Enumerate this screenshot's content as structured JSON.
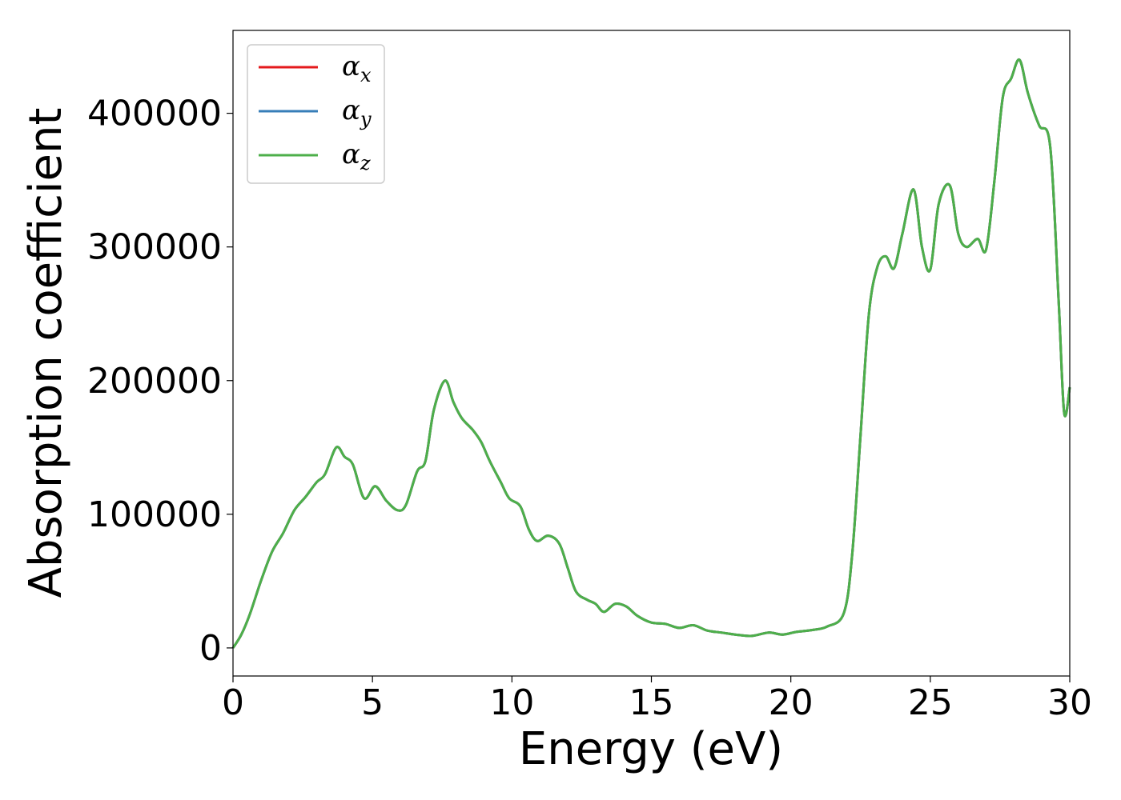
{
  "chart_data": {
    "type": "line",
    "xlabel": "Energy (eV)",
    "ylabel": "Absorption coefficient",
    "xlim": [
      0,
      30
    ],
    "ylim": [
      -21000,
      462000
    ],
    "xticks": [
      0,
      5,
      10,
      15,
      20,
      25,
      30
    ],
    "yticks": [
      0,
      100000,
      200000,
      300000,
      400000
    ],
    "grid": false,
    "legend_position": "top-left",
    "x": [
      0,
      0.3,
      0.6,
      1.0,
      1.4,
      1.8,
      2.2,
      2.6,
      3.0,
      3.3,
      3.7,
      4.0,
      4.3,
      4.7,
      5.1,
      5.5,
      5.9,
      6.2,
      6.6,
      6.9,
      7.2,
      7.6,
      7.9,
      8.2,
      8.6,
      8.9,
      9.2,
      9.6,
      9.9,
      10.3,
      10.6,
      10.9,
      11.3,
      11.7,
      12.0,
      12.3,
      12.7,
      13.0,
      13.3,
      13.7,
      14.1,
      14.5,
      15.0,
      15.5,
      16.0,
      16.5,
      17.0,
      17.5,
      18.0,
      18.6,
      19.2,
      19.7,
      20.2,
      20.8,
      21.3,
      21.9,
      22.2,
      22.5,
      22.8,
      23.1,
      23.4,
      23.7,
      24.0,
      24.4,
      24.7,
      25.0,
      25.3,
      25.7,
      26.0,
      26.3,
      26.7,
      27.0,
      27.3,
      27.6,
      27.9,
      28.2,
      28.5,
      28.9,
      29.3,
      29.6,
      29.8,
      30.0
    ],
    "series": [
      {
        "name": "α_x",
        "color": "#e41a1c",
        "values": [
          0,
          10000,
          25000,
          50000,
          72000,
          86000,
          103000,
          113000,
          124000,
          130000,
          150000,
          143000,
          137000,
          112000,
          121000,
          110000,
          103000,
          107000,
          132000,
          140000,
          178000,
          200000,
          184000,
          172000,
          163000,
          154000,
          140000,
          124000,
          112000,
          106000,
          89000,
          80000,
          84000,
          78000,
          60000,
          42000,
          36000,
          33000,
          27000,
          33000,
          31000,
          24000,
          19000,
          18000,
          15000,
          17000,
          13000,
          11500,
          10000,
          9000,
          11500,
          10000,
          12000,
          13500,
          16000,
          26000,
          70000,
          160000,
          250000,
          285000,
          293000,
          284000,
          310000,
          343000,
          300000,
          283000,
          332000,
          346000,
          310000,
          300000,
          306000,
          298000,
          350000,
          412000,
          426000,
          440000,
          415000,
          391000,
          375000,
          260000,
          176000,
          195000
        ]
      },
      {
        "name": "α_y",
        "color": "#377eb8",
        "values": [
          0,
          10000,
          25000,
          50000,
          72000,
          86000,
          103000,
          113000,
          124000,
          130000,
          150000,
          143000,
          137000,
          112000,
          121000,
          110000,
          103000,
          107000,
          132000,
          140000,
          178000,
          200000,
          184000,
          172000,
          163000,
          154000,
          140000,
          124000,
          112000,
          106000,
          89000,
          80000,
          84000,
          78000,
          60000,
          42000,
          36000,
          33000,
          27000,
          33000,
          31000,
          24000,
          19000,
          18000,
          15000,
          17000,
          13000,
          11500,
          10000,
          9000,
          11500,
          10000,
          12000,
          13500,
          16000,
          26000,
          70000,
          160000,
          250000,
          285000,
          293000,
          284000,
          310000,
          343000,
          300000,
          283000,
          332000,
          346000,
          310000,
          300000,
          306000,
          298000,
          350000,
          412000,
          426000,
          440000,
          415000,
          391000,
          375000,
          260000,
          176000,
          195000
        ]
      },
      {
        "name": "α_z",
        "color": "#4daf4a",
        "values": [
          0,
          10000,
          25000,
          50000,
          72000,
          86000,
          103000,
          113000,
          124000,
          130000,
          150000,
          143000,
          137000,
          112000,
          121000,
          110000,
          103000,
          107000,
          132000,
          140000,
          178000,
          200000,
          184000,
          172000,
          163000,
          154000,
          140000,
          124000,
          112000,
          106000,
          89000,
          80000,
          84000,
          78000,
          60000,
          42000,
          36000,
          33000,
          27000,
          33000,
          31000,
          24000,
          19000,
          18000,
          15000,
          17000,
          13000,
          11500,
          10000,
          9000,
          11500,
          10000,
          12000,
          13500,
          16000,
          26000,
          70000,
          160000,
          250000,
          285000,
          293000,
          284000,
          310000,
          343000,
          300000,
          283000,
          332000,
          346000,
          310000,
          300000,
          306000,
          298000,
          350000,
          412000,
          426000,
          440000,
          415000,
          391000,
          375000,
          260000,
          176000,
          195000
        ]
      }
    ],
    "legend": [
      {
        "symbol": "α",
        "sub": "x"
      },
      {
        "symbol": "α",
        "sub": "y"
      },
      {
        "symbol": "α",
        "sub": "z"
      }
    ]
  }
}
